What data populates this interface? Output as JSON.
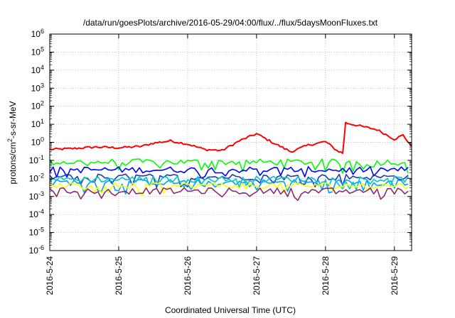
{
  "chart_data": {
    "type": "line",
    "title": "/data/run/goesPlots/archive/2016-05-29/04:00/flux/../flux/5daysMoonFluxes.txt",
    "xlabel": "Coordinated Universal Time (UTC)",
    "ylabel": {
      "base": "protons/cm",
      "sup": "2",
      "rest": "-s-sr-MeV"
    },
    "yscale": "log",
    "ylim": [
      1e-06,
      1000000.0
    ],
    "xlim": [
      "2016-5-24",
      "2016-5-29 06:00"
    ],
    "x_ticks": [
      "2016-5-24",
      "2016-5-25",
      "2016-5-26",
      "2016-5-27",
      "2016-5-28",
      "2016-5-29"
    ],
    "y_ticks": [
      {
        "base": "10",
        "exp": "-6"
      },
      {
        "base": "10",
        "exp": "-5"
      },
      {
        "base": "10",
        "exp": "-4"
      },
      {
        "base": "10",
        "exp": "-3"
      },
      {
        "base": "10",
        "exp": "-2"
      },
      {
        "base": "10",
        "exp": "-1"
      },
      {
        "base": "10",
        "exp": "0"
      },
      {
        "base": "10",
        "exp": "1"
      },
      {
        "base": "10",
        "exp": "2"
      },
      {
        "base": "10",
        "exp": "3"
      },
      {
        "base": "10",
        "exp": "4"
      },
      {
        "base": "10",
        "exp": "5"
      },
      {
        "base": "10",
        "exp": "6"
      }
    ],
    "grid": true,
    "series": [
      {
        "color": "#ff0000",
        "points": [
          [
            "2016-5-24 00:00",
            0.4
          ],
          [
            "2016-5-24 08:00",
            0.45
          ],
          [
            "2016-5-24 16:00",
            0.55
          ],
          [
            "2016-5-25 00:00",
            0.5
          ],
          [
            "2016-5-25 08:00",
            0.6
          ],
          [
            "2016-5-25 12:00",
            0.9
          ],
          [
            "2016-5-25 18:00",
            1.2
          ],
          [
            "2016-5-26 00:00",
            0.8
          ],
          [
            "2016-5-26 06:00",
            0.4
          ],
          [
            "2016-5-26 12:00",
            0.35
          ],
          [
            "2016-5-26 18:00",
            1.2
          ],
          [
            "2016-5-27 00:00",
            3.0
          ],
          [
            "2016-5-27 06:00",
            0.9
          ],
          [
            "2016-5-27 12:00",
            0.3
          ],
          [
            "2016-5-27 18:00",
            0.7
          ],
          [
            "2016-5-28 00:00",
            1.1
          ],
          [
            "2016-5-28 04:00",
            0.35
          ],
          [
            "2016-5-28 06:00",
            0.25
          ],
          [
            "2016-5-28 07:00",
            12
          ],
          [
            "2016-5-28 12:00",
            8
          ],
          [
            "2016-5-28 18:00",
            5
          ],
          [
            "2016-5-29 00:00",
            1.5
          ],
          [
            "2016-5-29 03:00",
            2.5
          ],
          [
            "2016-5-29 06:00",
            0.6
          ]
        ]
      },
      {
        "color": "#00ff00",
        "level": 0.08
      },
      {
        "color": "#0000ff",
        "level": 0.03
      },
      {
        "color": "#1e3cb4",
        "level": 0.012
      },
      {
        "color": "#00a0ff",
        "level": 0.006
      },
      {
        "color": "#00c8c8",
        "level": 0.009
      },
      {
        "color": "#ffff00",
        "level": 0.004
      },
      {
        "color": "#8b2a6e",
        "level": 0.002
      }
    ]
  }
}
